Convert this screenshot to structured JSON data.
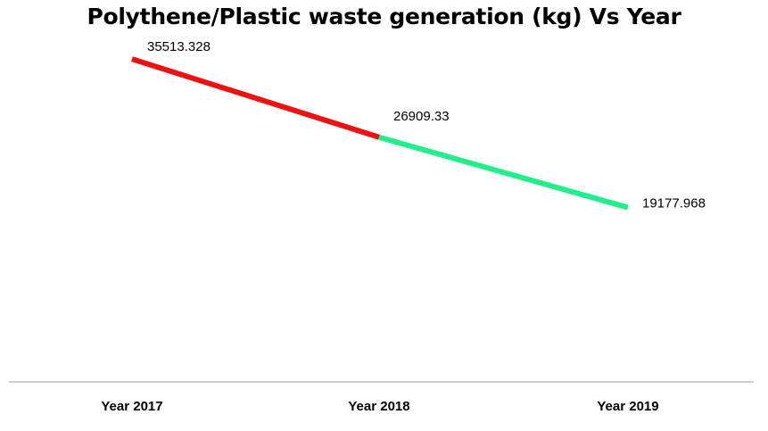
{
  "chart_data": {
    "type": "line",
    "title": "Polythene/Plastic waste generation (kg) Vs Year",
    "categories": [
      "Year 2017",
      "Year 2018",
      "Year 2019"
    ],
    "values": [
      35513.328,
      26909.33,
      19177.968
    ],
    "data_labels": [
      "35513.328",
      "26909.33",
      "19177.968"
    ],
    "segment_colors": [
      "#ee1111",
      "#22ee8c"
    ],
    "ylim": [
      0,
      42000
    ],
    "grid": false,
    "legend": "none"
  }
}
